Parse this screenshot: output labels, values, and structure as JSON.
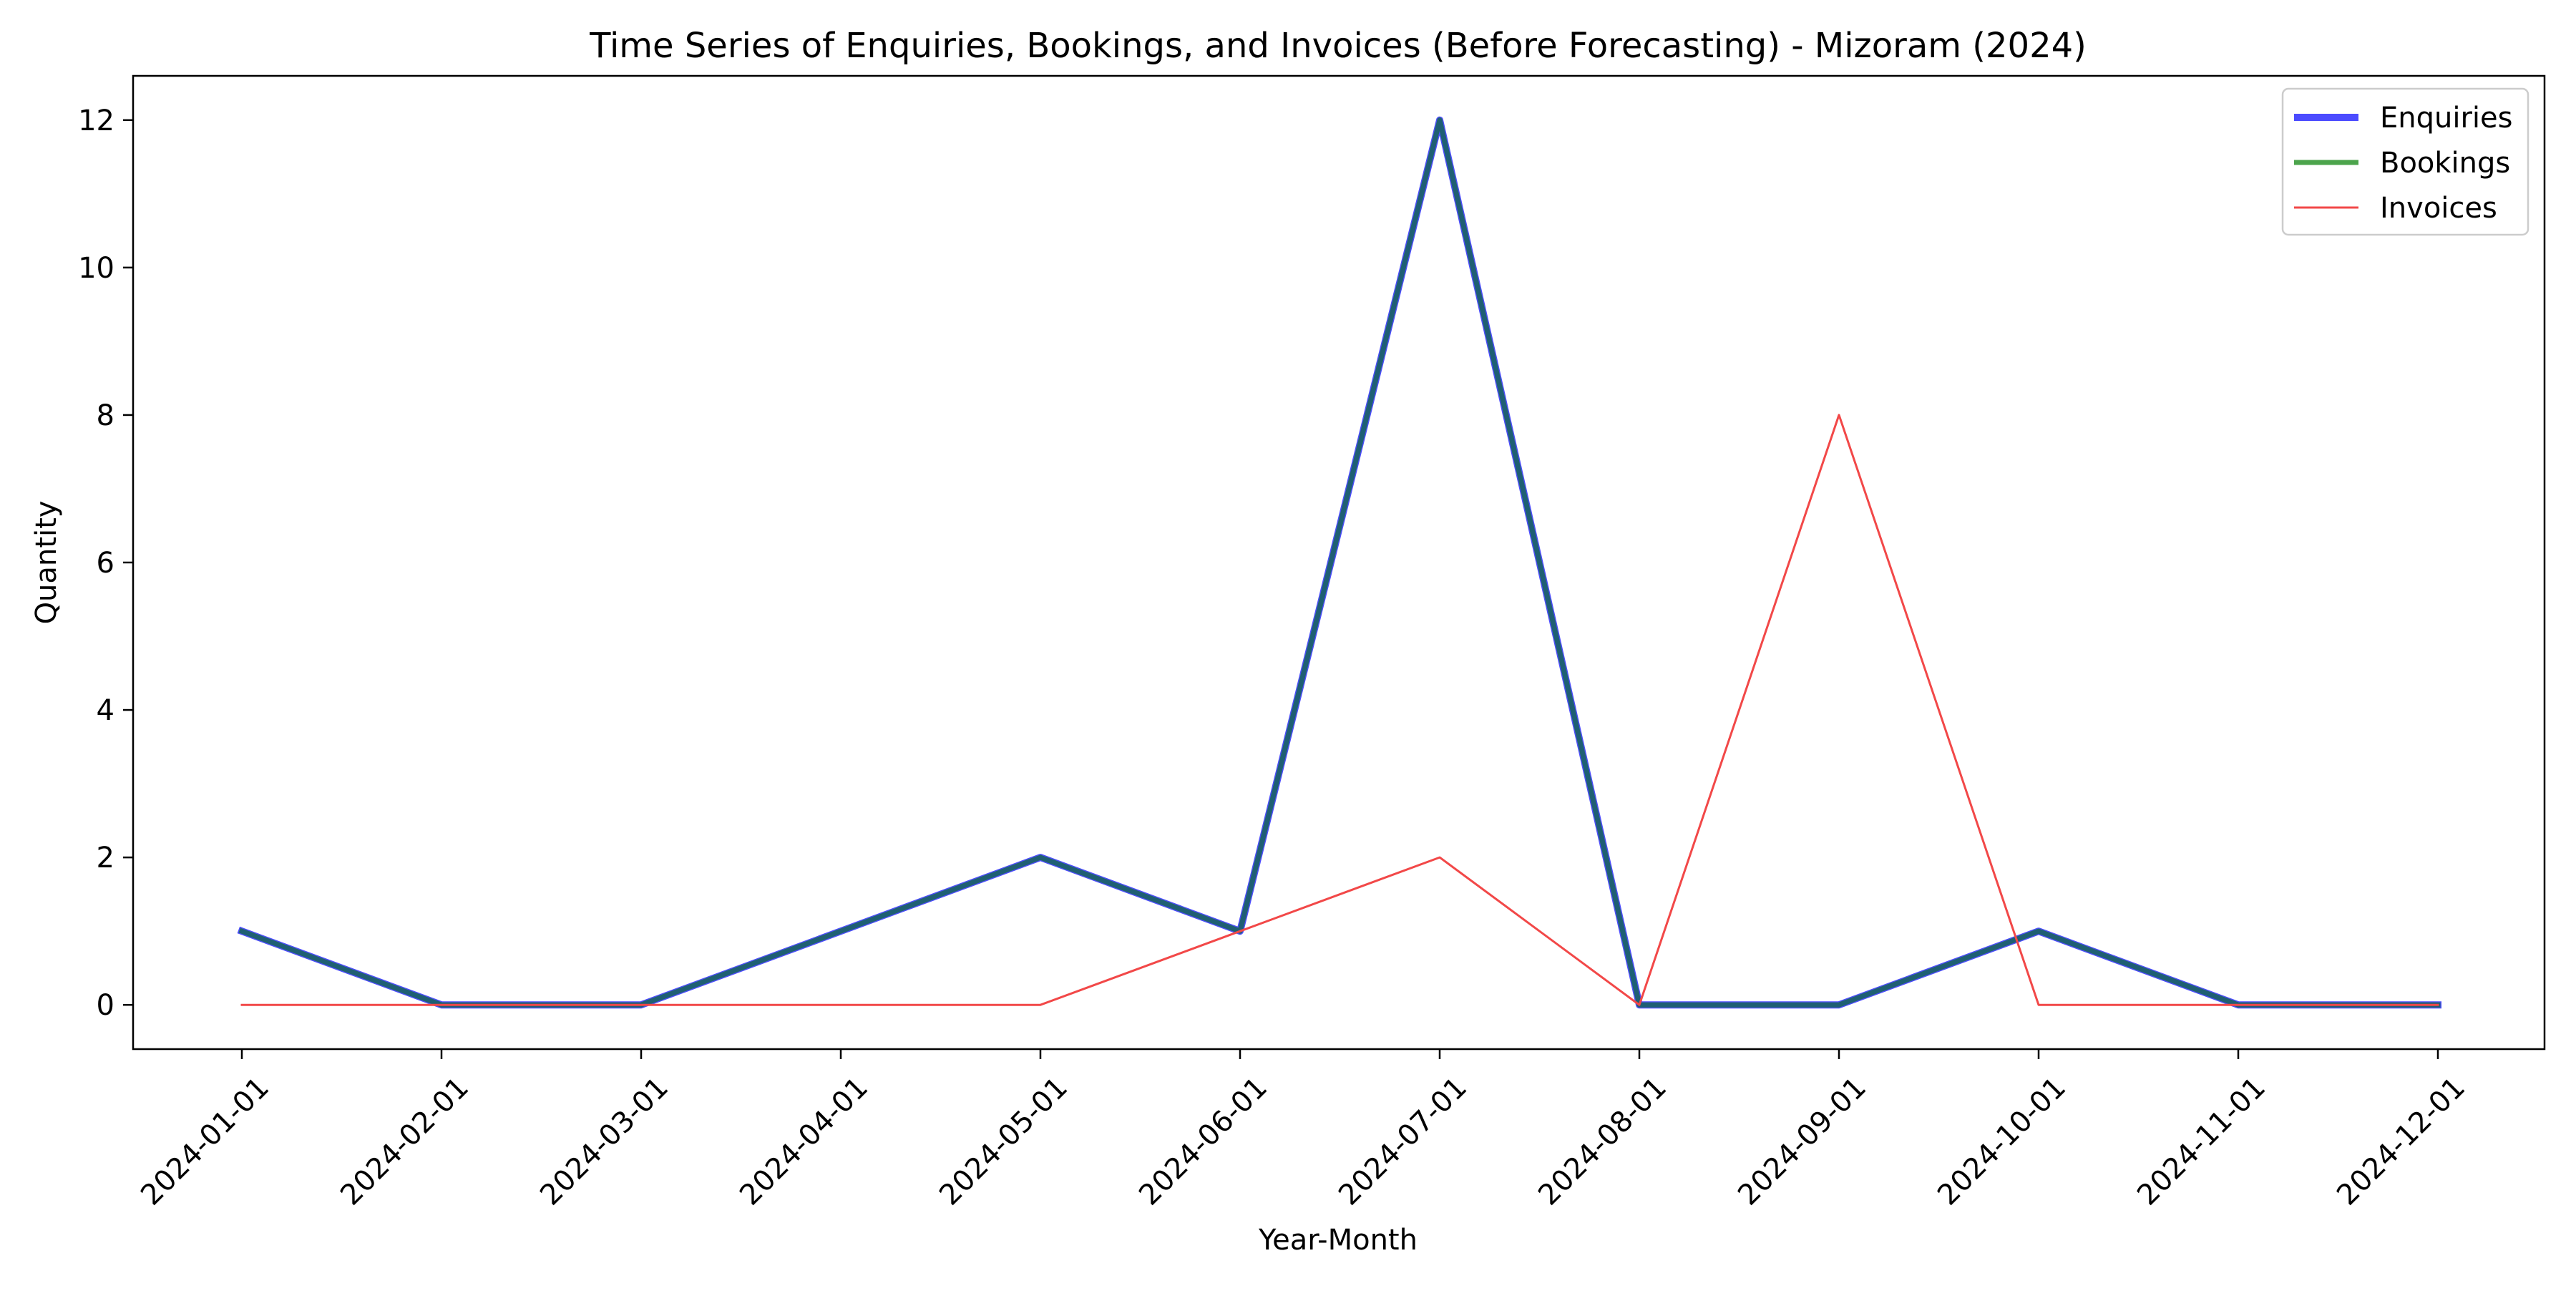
{
  "chart_data": {
    "type": "line",
    "title": "Time Series of Enquiries, Bookings, and Invoices (Before Forecasting) - Mizoram (2024)",
    "xlabel": "Year-Month",
    "ylabel": "Quantity",
    "x": [
      "2024-01-01",
      "2024-02-01",
      "2024-03-01",
      "2024-04-01",
      "2024-05-01",
      "2024-06-01",
      "2024-07-01",
      "2024-08-01",
      "2024-09-01",
      "2024-10-01",
      "2024-11-01",
      "2024-12-01"
    ],
    "yticks": [
      0,
      2,
      4,
      6,
      8,
      10,
      12
    ],
    "ylim": [
      -0.6,
      12.6
    ],
    "grid": false,
    "legend_position": "top-right",
    "series": [
      {
        "name": "Enquiries",
        "color": "#4b4bff",
        "values": [
          1,
          0,
          0,
          1,
          2,
          1,
          12,
          0,
          0,
          1,
          0,
          0
        ]
      },
      {
        "name": "Bookings",
        "color": "#4ca44c",
        "values": [
          1,
          0,
          0,
          1,
          2,
          1,
          12,
          0,
          0,
          1,
          0,
          0
        ]
      },
      {
        "name": "Invoices",
        "color": "#f24848",
        "values": [
          0,
          0,
          0,
          0,
          0,
          1,
          2,
          0,
          8,
          0,
          0,
          0
        ]
      }
    ]
  }
}
